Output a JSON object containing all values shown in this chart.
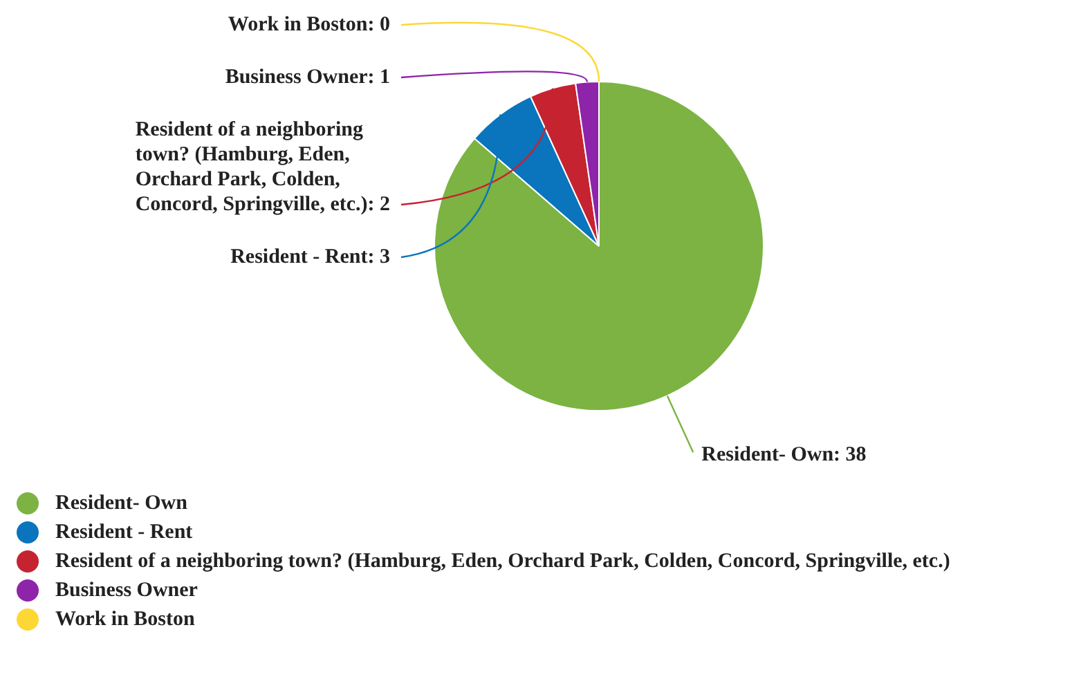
{
  "chart_data": {
    "type": "pie",
    "categories": [
      "Resident- Own",
      "Resident - Rent",
      "Resident of a neighboring town? (Hamburg, Eden, Orchard Park, Colden, Concord, Springville, etc.)",
      "Business Owner",
      "Work in Boston"
    ],
    "values": [
      38,
      3,
      2,
      1,
      0
    ],
    "value_labels": [
      "Resident- Own: 38",
      "Resident - Rent: 3",
      "Resident of a neighboring town? (Hamburg, Eden, Orchard Park, Colden, Concord, Springville, etc.): 2",
      "Business Owner: 1",
      "Work in Boston: 0"
    ],
    "colors": [
      "#7cb342",
      "#0a74bd",
      "#c62331",
      "#8e24aa",
      "#fdd835"
    ],
    "legend": "bottom"
  }
}
